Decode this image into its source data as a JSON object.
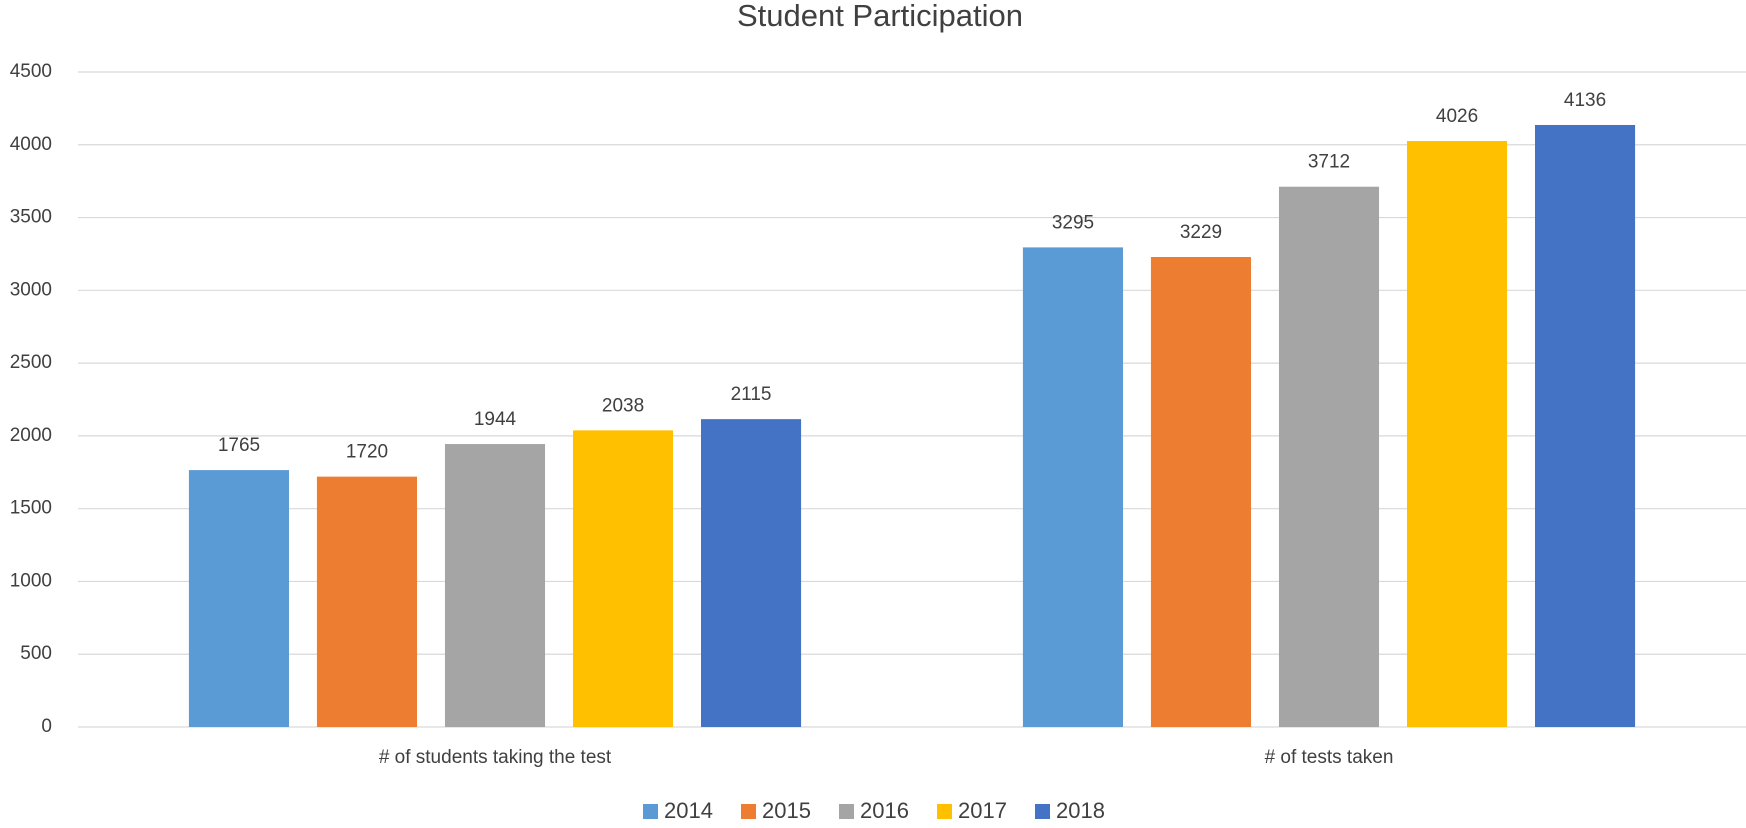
{
  "chart_data": {
    "type": "bar",
    "title": "Student Participation",
    "categories": [
      "# of students taking the test",
      "# of tests taken"
    ],
    "series": [
      {
        "name": "2014",
        "color": "#5b9bd5",
        "values": [
          1765,
          3295
        ]
      },
      {
        "name": "2015",
        "color": "#ed7d31",
        "values": [
          1720,
          3229
        ]
      },
      {
        "name": "2016",
        "color": "#a5a5a5",
        "values": [
          1944,
          3712
        ]
      },
      {
        "name": "2017",
        "color": "#ffc000",
        "values": [
          2038,
          4026
        ]
      },
      {
        "name": "2018",
        "color": "#4472c4",
        "values": [
          2115,
          4136
        ]
      }
    ],
    "ylim": [
      0,
      4500
    ],
    "yticks": [
      0,
      500,
      1000,
      1500,
      2000,
      2500,
      3000,
      3500,
      4000,
      4500
    ],
    "grid": true,
    "legend": "bottom"
  }
}
